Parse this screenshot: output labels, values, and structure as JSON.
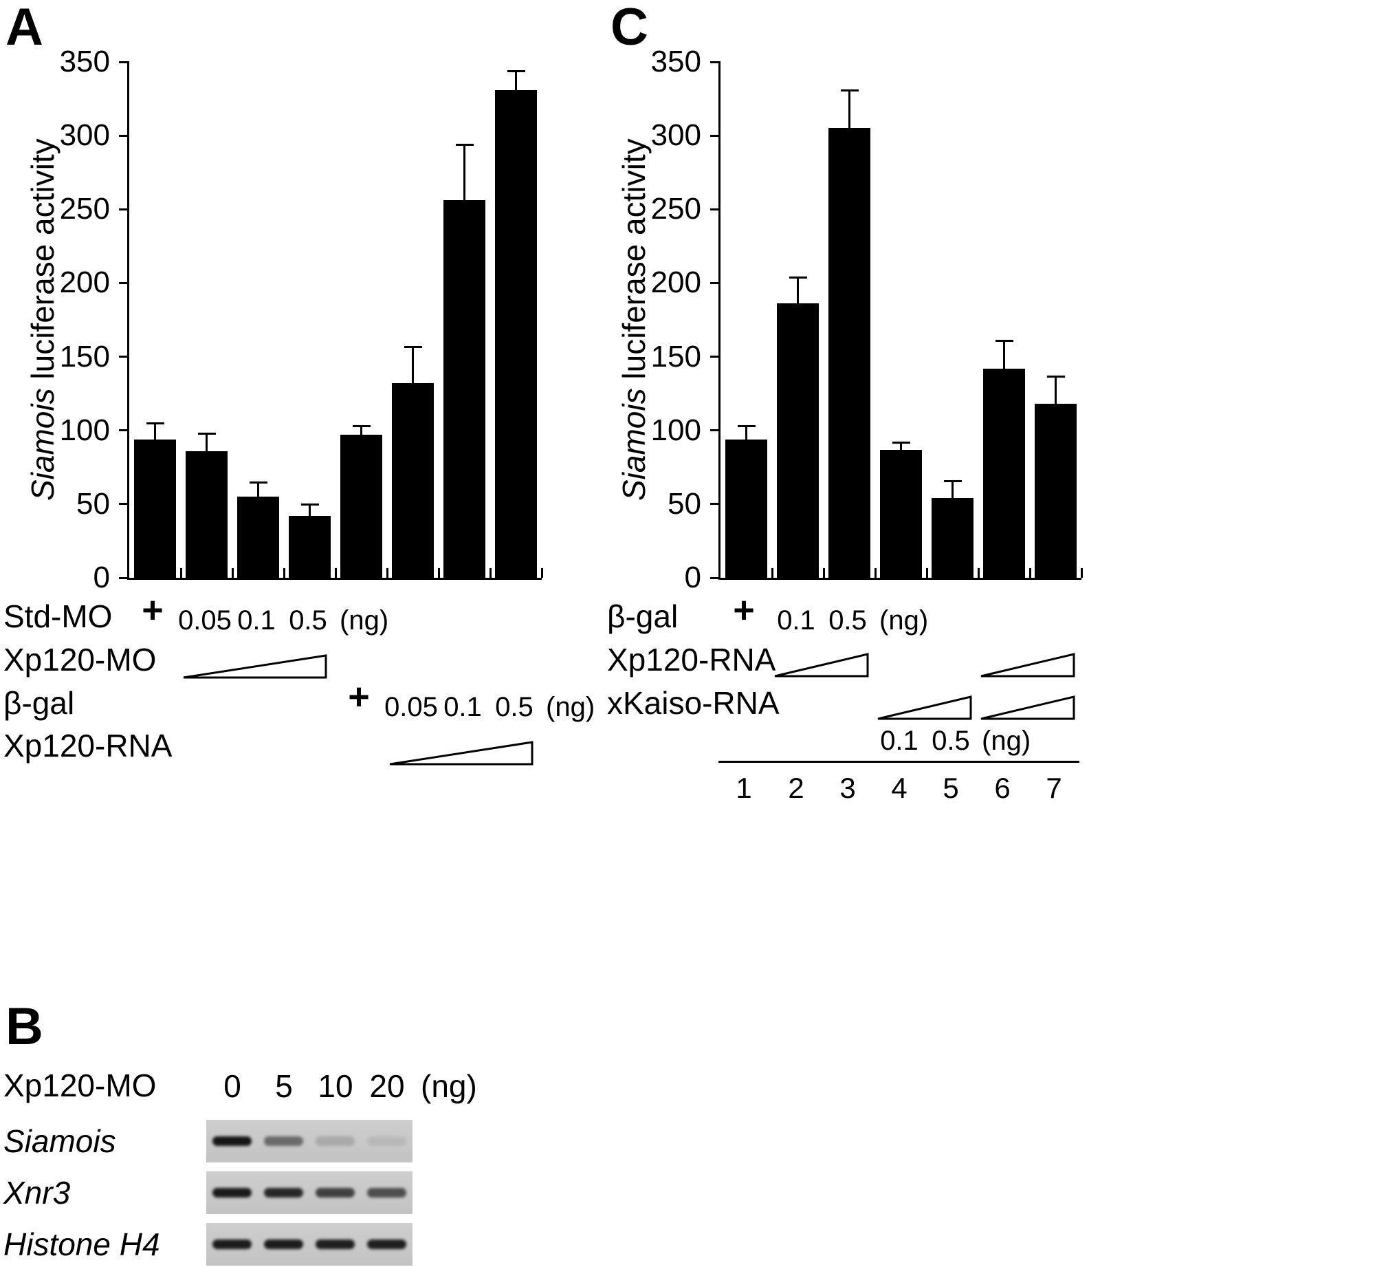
{
  "panels": {
    "a": "A",
    "b": "B",
    "c": "C"
  },
  "chart_data": [
    {
      "id": "A",
      "type": "bar",
      "ylabel_italic": "Siamois",
      "ylabel_rest": " luciferase activity",
      "ylim": [
        0,
        350
      ],
      "yticks": [
        0,
        50,
        100,
        150,
        200,
        250,
        300,
        350
      ],
      "grid": false,
      "bar_color": "#000000",
      "categories": [
        "Std-MO +",
        "Xp120-MO 0.05 ng",
        "Xp120-MO 0.1 ng",
        "Xp120-MO 0.5 ng",
        "β-gal +",
        "Xp120-RNA 0.05 ng",
        "Xp120-RNA 0.1 ng",
        "Xp120-RNA 0.5 ng"
      ],
      "values": [
        94,
        86,
        55,
        42,
        97,
        132,
        256,
        331
      ],
      "errors_plus": [
        10,
        11,
        9,
        7,
        5,
        24,
        37,
        12
      ]
    },
    {
      "id": "C",
      "type": "bar",
      "ylabel_italic": "Siamois",
      "ylabel_rest": " luciferase activity",
      "ylim": [
        0,
        350
      ],
      "yticks": [
        0,
        50,
        100,
        150,
        200,
        250,
        300,
        350
      ],
      "grid": false,
      "bar_color": "#000000",
      "categories": [
        "β-gal +",
        "Xp120-RNA 0.1 ng",
        "Xp120-RNA 0.5 ng",
        "xKaiso-RNA 0.1 ng",
        "xKaiso-RNA 0.5 ng",
        "Xp120-RNA + xKaiso-RNA",
        "Xp120-RNA + xKaiso-RNA"
      ],
      "values": [
        94,
        186,
        305,
        87,
        54,
        142,
        118
      ],
      "errors_plus": [
        8,
        17,
        25,
        4,
        11,
        18,
        18
      ],
      "xticklabels": [
        "1",
        "2",
        "3",
        "4",
        "5",
        "6",
        "7"
      ]
    }
  ],
  "panel_a": {
    "row1_label": "Std-MO",
    "row1_plus": "+",
    "mo_doses": [
      "0.05",
      "0.1",
      "0.5"
    ],
    "mo_unit": "(ng)",
    "row2_label": "Xp120-MO",
    "row3_label": "β-gal",
    "row3_plus": "+",
    "rna_doses": [
      "0.05",
      "0.1",
      "0.5"
    ],
    "rna_unit": "(ng)",
    "row4_label": "Xp120-RNA"
  },
  "panel_c": {
    "row1_label": "β-gal",
    "row1_plus": "+",
    "top_doses": [
      "0.1",
      "0.5"
    ],
    "top_unit": "(ng)",
    "row2_label": "Xp120-RNA",
    "row3_label": "xKaiso-RNA",
    "bottom_doses": [
      "0.1",
      "0.5"
    ],
    "bottom_unit": "(ng)"
  },
  "panel_b": {
    "header_label": "Xp120-MO",
    "doses": [
      "0",
      "5",
      "10",
      "20"
    ],
    "unit": "(ng)",
    "rows": [
      {
        "label": "Siamois",
        "bands": [
          0.95,
          0.5,
          0.16,
          0.08
        ]
      },
      {
        "label": "Xnr3",
        "bands": [
          0.92,
          0.85,
          0.72,
          0.65
        ]
      },
      {
        "label": "Histone H4",
        "bands": [
          0.92,
          0.92,
          0.9,
          0.9
        ]
      }
    ]
  }
}
